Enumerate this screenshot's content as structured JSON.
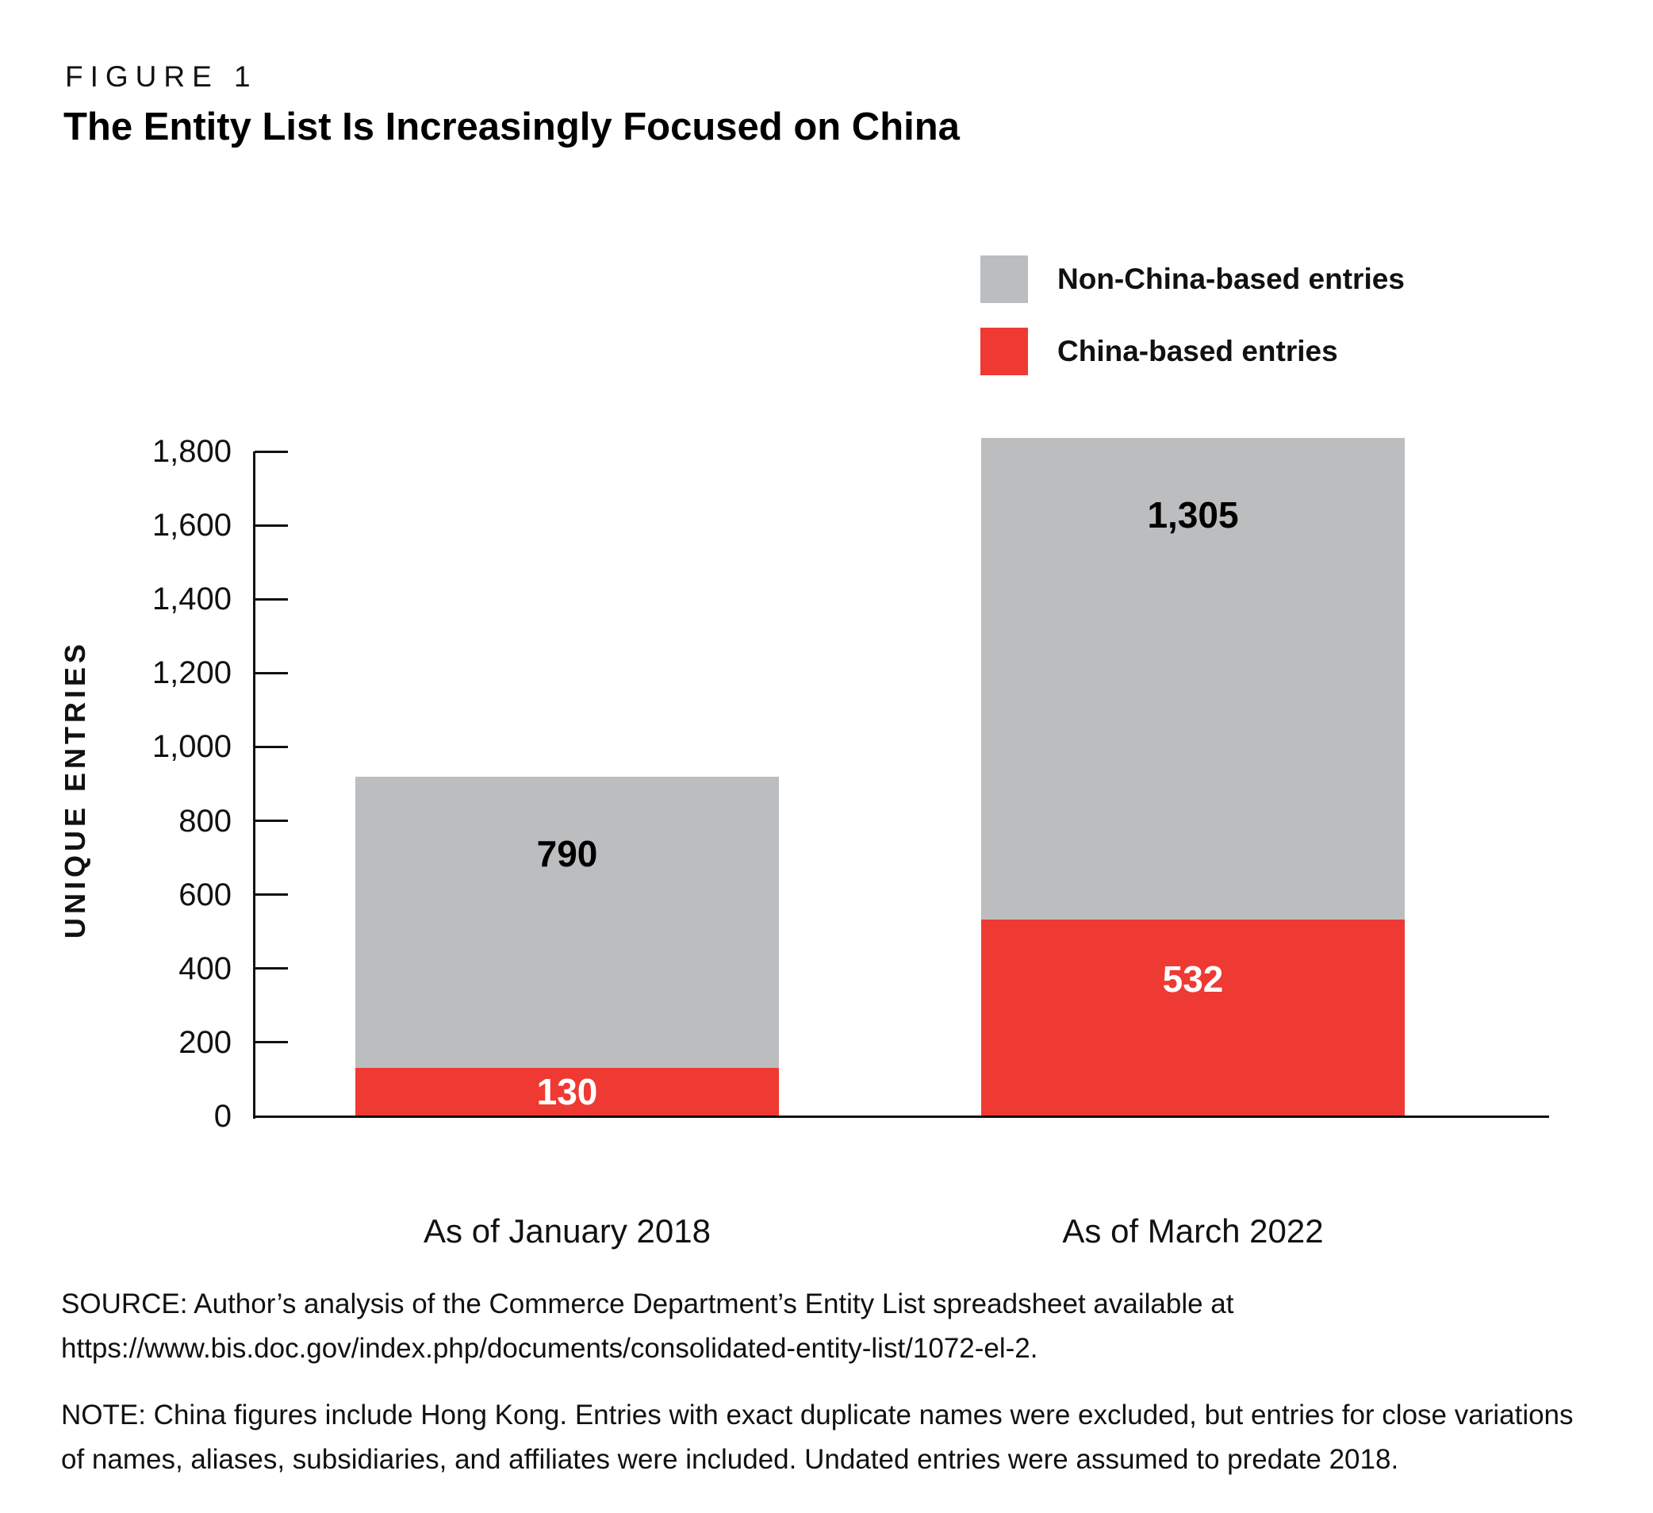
{
  "figure": {
    "label": "FIGURE 1",
    "title": "The Entity List Is Increasingly Focused on China"
  },
  "legend": [
    {
      "label": "Non-China-based entries",
      "color": "#bcbdbf"
    },
    {
      "label": "China-based entries",
      "color": "#ee3a33"
    }
  ],
  "chart_data": {
    "type": "bar",
    "stacked": true,
    "title": "The Entity List Is Increasingly Focused on China",
    "categories": [
      "As of January 2018",
      "As of March 2022"
    ],
    "series": [
      {
        "name": "China-based entries",
        "color": "#ee3a33",
        "values": [
          130,
          532
        ],
        "labels": [
          "130",
          "532"
        ],
        "label_color": "#ffffff"
      },
      {
        "name": "Non-China-based entries",
        "color": "#bcbdbf",
        "values": [
          790,
          1305
        ],
        "labels": [
          "790",
          "1,305"
        ],
        "label_color": "#000000"
      }
    ],
    "ylabel": "UNIQUE ENTRIES",
    "xlabel": "",
    "ylim": [
      0,
      1800
    ],
    "ytick_values": [
      0,
      200,
      400,
      600,
      800,
      1000,
      1200,
      1400,
      1600,
      1800
    ],
    "ytick_labels": [
      "0",
      "200",
      "400",
      "600",
      "800",
      "1,000",
      "1,200",
      "1,400",
      "1,600",
      "1,800"
    ],
    "grid": false,
    "legend_position": "top-right"
  },
  "footer": {
    "source_line1": "SOURCE: Author’s analysis of the Commerce Department’s Entity List spreadsheet available at",
    "source_line2": "https://www.bis.doc.gov/index.php/documents/consolidated-entity-list/1072-el-2.",
    "note_line1": "NOTE: China figures include Hong Kong. Entries with exact duplicate names were excluded, but entries for close variations",
    "note_line2": "of names, aliases, subsidiaries, and affiliates were included. Undated entries were assumed to predate 2018."
  }
}
